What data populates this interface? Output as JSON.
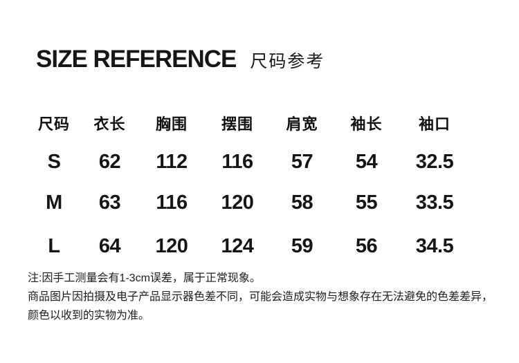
{
  "page": {
    "background_color": "#ffffff",
    "text_color": "#111111"
  },
  "header": {
    "title": "SIZE REFERENCE",
    "subtitle": "尺码参考"
  },
  "size_table": {
    "columns": [
      "尺码",
      "衣长",
      "胸围",
      "摆围",
      "肩宽",
      "袖长",
      "袖口"
    ],
    "rows": [
      {
        "cells": [
          "S",
          "62",
          "112",
          "116",
          "57",
          "54",
          "32.5"
        ]
      },
      {
        "cells": [
          "M",
          "63",
          "116",
          "120",
          "58",
          "55",
          "33.5"
        ]
      },
      {
        "cells": [
          "L",
          "64",
          "120",
          "124",
          "59",
          "56",
          "34.5"
        ]
      }
    ]
  },
  "notes": {
    "line1": "注:因手工测量会有1-3cm误差，属于正常现象。",
    "line2": "商品图片因拍摄及电子产品显示器色差不同，可能会造成实物与想象存在无法避免的色差差异，颜色以收到的实物为准。"
  }
}
